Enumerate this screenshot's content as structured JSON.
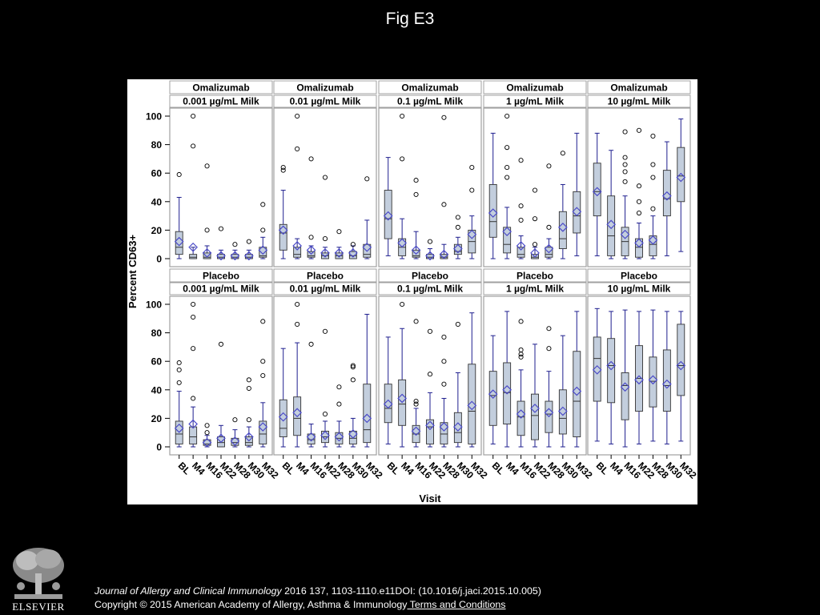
{
  "slide": {
    "title": "Fig E3",
    "citation": {
      "journal": "Journal of Allergy and Clinical Immunology",
      "rest": " 2016 137, 1103-1110.e11DOI: (10.1016/j.jaci.2015.10.005)"
    },
    "copyright": "Copyright © 2015 American Academy of Allergy, Asthma & Immunology",
    "terms_link": " Terms and Conditions",
    "logo_text": "ELSEVIER"
  },
  "chart_data": {
    "type": "box",
    "ylabel": "Percent CD63+",
    "xlabel": "Visit",
    "ylim": [
      0,
      100
    ],
    "yticks": [
      0,
      20,
      40,
      60,
      80,
      100
    ],
    "visits": [
      "BL",
      "M4",
      "M16",
      "M22",
      "M28",
      "M30",
      "M32"
    ],
    "colors": {
      "box_fill": "#c3cedd",
      "whisker": "#1f1f8f",
      "mean_marker": "#4b4bc8",
      "panel_border": "#a0a0a0"
    },
    "panels": [
      {
        "row": "Omalizumab",
        "condition": "0.001 µg/mL Milk",
        "boxes": [
          {
            "visit": "BL",
            "min": 0,
            "q1": 3,
            "median": 8,
            "q3": 19,
            "max": 43,
            "mean": 12,
            "outliers": [
              59
            ]
          },
          {
            "visit": "M4",
            "min": 0,
            "q1": 0,
            "median": 1,
            "q3": 3,
            "max": 8,
            "mean": 8,
            "outliers": [
              79,
              100
            ]
          },
          {
            "visit": "M16",
            "min": 0,
            "q1": 0,
            "median": 1,
            "q3": 4,
            "max": 9,
            "mean": 4,
            "outliers": [
              20,
              65
            ]
          },
          {
            "visit": "M22",
            "min": 0,
            "q1": 0,
            "median": 1,
            "q3": 3,
            "max": 6,
            "mean": 2,
            "outliers": [
              21
            ]
          },
          {
            "visit": "M28",
            "min": 0,
            "q1": 0,
            "median": 1,
            "q3": 3,
            "max": 6,
            "mean": 2,
            "outliers": [
              10
            ]
          },
          {
            "visit": "M30",
            "min": 0,
            "q1": 0,
            "median": 1,
            "q3": 3,
            "max": 6,
            "mean": 2,
            "outliers": [
              12
            ]
          },
          {
            "visit": "M32",
            "min": 0,
            "q1": 1,
            "median": 2,
            "q3": 8,
            "max": 15,
            "mean": 6,
            "outliers": [
              20,
              38
            ]
          }
        ]
      },
      {
        "row": "Omalizumab",
        "condition": "0.01 µg/mL Milk",
        "boxes": [
          {
            "visit": "BL",
            "min": 0,
            "q1": 6,
            "median": 18,
            "q3": 24,
            "max": 48,
            "mean": 20,
            "outliers": [
              62,
              64
            ]
          },
          {
            "visit": "M4",
            "min": 0,
            "q1": 1,
            "median": 3,
            "q3": 8,
            "max": 14,
            "mean": 9,
            "outliers": [
              77,
              100
            ]
          },
          {
            "visit": "M16",
            "min": 0,
            "q1": 1,
            "median": 2,
            "q3": 5,
            "max": 9,
            "mean": 6,
            "outliers": [
              15,
              70
            ]
          },
          {
            "visit": "M22",
            "min": 0,
            "q1": 0,
            "median": 2,
            "q3": 4,
            "max": 8,
            "mean": 4,
            "outliers": [
              14,
              57
            ]
          },
          {
            "visit": "M28",
            "min": 0,
            "q1": 0,
            "median": 2,
            "q3": 4,
            "max": 8,
            "mean": 4,
            "outliers": [
              19
            ]
          },
          {
            "visit": "M30",
            "min": 0,
            "q1": 0,
            "median": 2,
            "q3": 5,
            "max": 9,
            "mean": 4,
            "outliers": [
              10
            ]
          },
          {
            "visit": "M32",
            "min": 0,
            "q1": 1,
            "median": 3,
            "q3": 10,
            "max": 27,
            "mean": 8,
            "outliers": [
              56
            ]
          }
        ]
      },
      {
        "row": "Omalizumab",
        "condition": "0.1 µg/mL Milk",
        "boxes": [
          {
            "visit": "BL",
            "min": 2,
            "q1": 14,
            "median": 28,
            "q3": 48,
            "max": 71,
            "mean": 30,
            "outliers": []
          },
          {
            "visit": "M4",
            "min": 0,
            "q1": 2,
            "median": 8,
            "q3": 14,
            "max": 28,
            "mean": 11,
            "outliers": [
              70,
              100
            ]
          },
          {
            "visit": "M16",
            "min": 0,
            "q1": 1,
            "median": 2,
            "q3": 6,
            "max": 19,
            "mean": 6,
            "outliers": [
              45,
              55
            ]
          },
          {
            "visit": "M22",
            "min": 0,
            "q1": 0,
            "median": 1,
            "q3": 3,
            "max": 7,
            "mean": 2,
            "outliers": [
              12
            ]
          },
          {
            "visit": "M28",
            "min": 0,
            "q1": 0,
            "median": 1,
            "q3": 3,
            "max": 10,
            "mean": 3,
            "outliers": [
              38,
              99
            ]
          },
          {
            "visit": "M30",
            "min": 0,
            "q1": 3,
            "median": 5,
            "q3": 10,
            "max": 15,
            "mean": 7,
            "outliers": [
              22,
              29
            ]
          },
          {
            "visit": "M32",
            "min": 0,
            "q1": 4,
            "median": 12,
            "q3": 20,
            "max": 30,
            "mean": 17,
            "outliers": [
              48,
              64
            ]
          }
        ]
      },
      {
        "row": "Omalizumab",
        "condition": "1 µg/mL Milk",
        "boxes": [
          {
            "visit": "BL",
            "min": 0,
            "q1": 15,
            "median": 26,
            "q3": 52,
            "max": 88,
            "mean": 32,
            "outliers": []
          },
          {
            "visit": "M4",
            "min": 0,
            "q1": 4,
            "median": 10,
            "q3": 22,
            "max": 36,
            "mean": 19,
            "outliers": [
              57,
              64,
              78,
              100
            ]
          },
          {
            "visit": "M16",
            "min": 0,
            "q1": 1,
            "median": 3,
            "q3": 8,
            "max": 16,
            "mean": 9,
            "outliers": [
              27,
              37,
              69
            ]
          },
          {
            "visit": "M22",
            "min": 0,
            "q1": 0,
            "median": 1,
            "q3": 3,
            "max": 8,
            "mean": 4,
            "outliers": [
              10,
              28,
              48
            ]
          },
          {
            "visit": "M28",
            "min": 0,
            "q1": 1,
            "median": 3,
            "q3": 8,
            "max": 14,
            "mean": 7,
            "outliers": [
              22,
              65
            ]
          },
          {
            "visit": "M30",
            "min": 0,
            "q1": 7,
            "median": 14,
            "q3": 33,
            "max": 52,
            "mean": 22,
            "outliers": [
              74
            ]
          },
          {
            "visit": "M32",
            "min": 2,
            "q1": 18,
            "median": 30,
            "q3": 47,
            "max": 88,
            "mean": 33,
            "outliers": []
          }
        ]
      },
      {
        "row": "Omalizumab",
        "condition": "10 µg/mL Milk",
        "boxes": [
          {
            "visit": "BL",
            "min": 2,
            "q1": 30,
            "median": 47,
            "q3": 67,
            "max": 88,
            "mean": 47,
            "outliers": []
          },
          {
            "visit": "M4",
            "min": 0,
            "q1": 2,
            "median": 16,
            "q3": 44,
            "max": 76,
            "mean": 24,
            "outliers": []
          },
          {
            "visit": "M16",
            "min": 0,
            "q1": 2,
            "median": 12,
            "q3": 22,
            "max": 44,
            "mean": 17,
            "outliers": [
              54,
              61,
              66,
              71,
              89
            ]
          },
          {
            "visit": "M22",
            "min": 0,
            "q1": 1,
            "median": 8,
            "q3": 14,
            "max": 25,
            "mean": 11,
            "outliers": [
              32,
              40,
              51,
              90
            ]
          },
          {
            "visit": "M28",
            "min": 0,
            "q1": 2,
            "median": 10,
            "q3": 16,
            "max": 30,
            "mean": 13,
            "outliers": [
              35,
              57,
              66,
              86
            ]
          },
          {
            "visit": "M30",
            "min": 2,
            "q1": 30,
            "median": 42,
            "q3": 62,
            "max": 82,
            "mean": 44,
            "outliers": []
          },
          {
            "visit": "M32",
            "min": 5,
            "q1": 40,
            "median": 58,
            "q3": 78,
            "max": 98,
            "mean": 57,
            "outliers": []
          }
        ]
      },
      {
        "row": "Placebo",
        "condition": "0.001 µg/mL Milk",
        "boxes": [
          {
            "visit": "BL",
            "min": 0,
            "q1": 2,
            "median": 9,
            "q3": 18,
            "max": 39,
            "mean": 13,
            "outliers": [
              45,
              54,
              59
            ]
          },
          {
            "visit": "M4",
            "min": 0,
            "q1": 2,
            "median": 7,
            "q3": 14,
            "max": 28,
            "mean": 16,
            "outliers": [
              34,
              69,
              91,
              100
            ]
          },
          {
            "visit": "M16",
            "min": 0,
            "q1": 1,
            "median": 2,
            "q3": 5,
            "max": 8,
            "mean": 3,
            "outliers": [
              10,
              15
            ]
          },
          {
            "visit": "M22",
            "min": 0,
            "q1": 0,
            "median": 3,
            "q3": 7,
            "max": 15,
            "mean": 6,
            "outliers": [
              72
            ]
          },
          {
            "visit": "M28",
            "min": 0,
            "q1": 1,
            "median": 3,
            "q3": 6,
            "max": 12,
            "mean": 4,
            "outliers": [
              19
            ]
          },
          {
            "visit": "M30",
            "min": 0,
            "q1": 1,
            "median": 3,
            "q3": 7,
            "max": 14,
            "mean": 7,
            "outliers": [
              19,
              41,
              47
            ]
          },
          {
            "visit": "M32",
            "min": 0,
            "q1": 2,
            "median": 9,
            "q3": 18,
            "max": 31,
            "mean": 14,
            "outliers": [
              50,
              60,
              88
            ]
          }
        ]
      },
      {
        "row": "Placebo",
        "condition": "0.01 µg/mL Milk",
        "boxes": [
          {
            "visit": "BL",
            "min": 0,
            "q1": 7,
            "median": 13,
            "q3": 33,
            "max": 69,
            "mean": 21,
            "outliers": []
          },
          {
            "visit": "M4",
            "min": 0,
            "q1": 8,
            "median": 20,
            "q3": 35,
            "max": 73,
            "mean": 24,
            "outliers": [
              86,
              100
            ]
          },
          {
            "visit": "M16",
            "min": 0,
            "q1": 2,
            "median": 5,
            "q3": 9,
            "max": 16,
            "mean": 7,
            "outliers": [
              72
            ]
          },
          {
            "visit": "M22",
            "min": 0,
            "q1": 3,
            "median": 7,
            "q3": 11,
            "max": 18,
            "mean": 8,
            "outliers": [
              23,
              81
            ]
          },
          {
            "visit": "M28",
            "min": 0,
            "q1": 2,
            "median": 6,
            "q3": 10,
            "max": 18,
            "mean": 7,
            "outliers": [
              30,
              42
            ]
          },
          {
            "visit": "M30",
            "min": 0,
            "q1": 2,
            "median": 6,
            "q3": 11,
            "max": 20,
            "mean": 9,
            "outliers": [
              47,
              56,
              57
            ]
          },
          {
            "visit": "M32",
            "min": 0,
            "q1": 3,
            "median": 12,
            "q3": 44,
            "max": 93,
            "mean": 20,
            "outliers": []
          }
        ]
      },
      {
        "row": "Placebo",
        "condition": "0.1 µg/mL Milk",
        "boxes": [
          {
            "visit": "BL",
            "min": 2,
            "q1": 17,
            "median": 27,
            "q3": 44,
            "max": 77,
            "mean": 30,
            "outliers": []
          },
          {
            "visit": "M4",
            "min": 0,
            "q1": 15,
            "median": 30,
            "q3": 47,
            "max": 83,
            "mean": 34,
            "outliers": [
              100
            ]
          },
          {
            "visit": "M16",
            "min": 0,
            "q1": 3,
            "median": 9,
            "q3": 15,
            "max": 27,
            "mean": 11,
            "outliers": [
              30,
              32,
              88
            ]
          },
          {
            "visit": "M22",
            "min": 0,
            "q1": 2,
            "median": 14,
            "q3": 19,
            "max": 38,
            "mean": 15,
            "outliers": [
              51,
              81
            ]
          },
          {
            "visit": "M28",
            "min": 0,
            "q1": 2,
            "median": 9,
            "q3": 17,
            "max": 34,
            "mean": 14,
            "outliers": [
              44,
              60,
              77
            ]
          },
          {
            "visit": "M30",
            "min": 0,
            "q1": 3,
            "median": 10,
            "q3": 24,
            "max": 52,
            "mean": 14,
            "outliers": [
              86
            ]
          },
          {
            "visit": "M32",
            "min": 0,
            "q1": 2,
            "median": 25,
            "q3": 58,
            "max": 94,
            "mean": 29,
            "outliers": []
          }
        ]
      },
      {
        "row": "Placebo",
        "condition": "1 µg/mL Milk",
        "boxes": [
          {
            "visit": "BL",
            "min": 2,
            "q1": 15,
            "median": 36,
            "q3": 53,
            "max": 78,
            "mean": 37,
            "outliers": []
          },
          {
            "visit": "M4",
            "min": 0,
            "q1": 16,
            "median": 38,
            "q3": 59,
            "max": 95,
            "mean": 40,
            "outliers": []
          },
          {
            "visit": "M16",
            "min": 0,
            "q1": 8,
            "median": 21,
            "q3": 32,
            "max": 54,
            "mean": 23,
            "outliers": [
              63,
              65,
              68,
              88
            ]
          },
          {
            "visit": "M22",
            "min": 0,
            "q1": 5,
            "median": 22,
            "q3": 37,
            "max": 72,
            "mean": 27,
            "outliers": []
          },
          {
            "visit": "M28",
            "min": 0,
            "q1": 10,
            "median": 23,
            "q3": 32,
            "max": 53,
            "mean": 24,
            "outliers": [
              69,
              83
            ]
          },
          {
            "visit": "M30",
            "min": 0,
            "q1": 9,
            "median": 20,
            "q3": 40,
            "max": 78,
            "mean": 25,
            "outliers": []
          },
          {
            "visit": "M32",
            "min": 0,
            "q1": 7,
            "median": 32,
            "q3": 67,
            "max": 95,
            "mean": 39,
            "outliers": []
          }
        ]
      },
      {
        "row": "Placebo",
        "condition": "10 µg/mL Milk",
        "boxes": [
          {
            "visit": "BL",
            "min": 4,
            "q1": 32,
            "median": 62,
            "q3": 77,
            "max": 97,
            "mean": 54,
            "outliers": []
          },
          {
            "visit": "M4",
            "min": 2,
            "q1": 31,
            "median": 57,
            "q3": 76,
            "max": 95,
            "mean": 57,
            "outliers": []
          },
          {
            "visit": "M16",
            "min": 0,
            "q1": 19,
            "median": 43,
            "q3": 52,
            "max": 96,
            "mean": 42,
            "outliers": []
          },
          {
            "visit": "M22",
            "min": 2,
            "q1": 25,
            "median": 48,
            "q3": 71,
            "max": 95,
            "mean": 47,
            "outliers": []
          },
          {
            "visit": "M28",
            "min": 4,
            "q1": 28,
            "median": 46,
            "q3": 63,
            "max": 96,
            "mean": 47,
            "outliers": []
          },
          {
            "visit": "M30",
            "min": 2,
            "q1": 25,
            "median": 43,
            "q3": 68,
            "max": 95,
            "mean": 44,
            "outliers": []
          },
          {
            "visit": "M32",
            "min": 4,
            "q1": 36,
            "median": 57,
            "q3": 86,
            "max": 95,
            "mean": 57,
            "outliers": []
          }
        ]
      }
    ]
  }
}
